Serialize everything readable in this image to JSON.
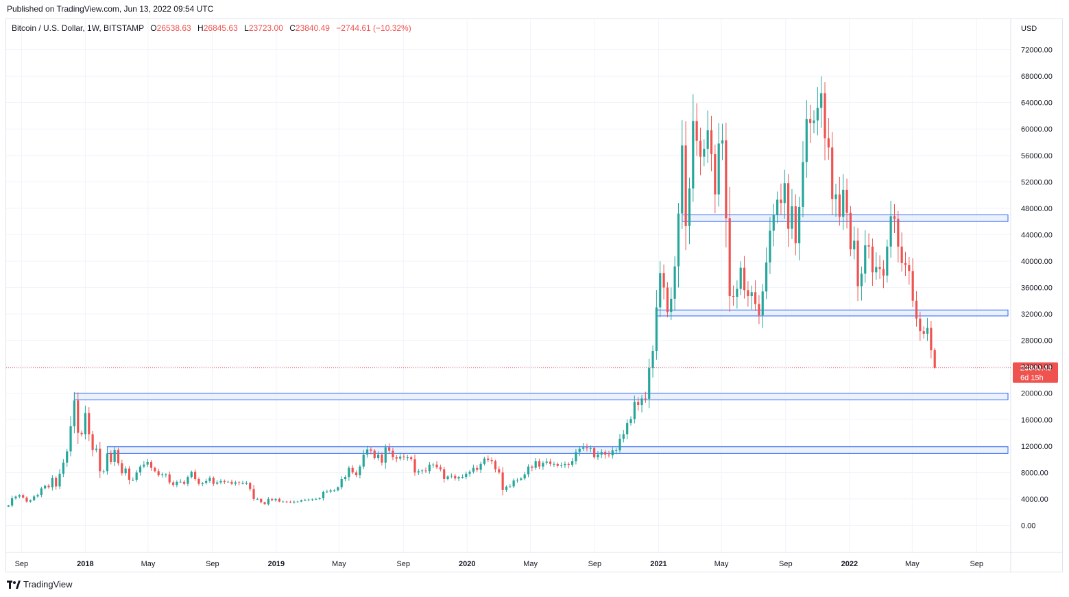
{
  "header": {
    "published": "Published on TradingView.com, Jun 13, 2022 09:54 UTC"
  },
  "legend": {
    "symbol": "Bitcoin / U.S. Dollar, 1W, BITSTAMP",
    "o_label": "O",
    "o_value": "26538.63",
    "h_label": "H",
    "h_value": "26845.63",
    "l_label": "L",
    "l_value": "23723.00",
    "c_label": "C",
    "c_value": "23840.49",
    "change": "−2744.61 (−10.32%)"
  },
  "brand": {
    "name": "TradingView",
    "icon": "tradingview-logo-icon"
  },
  "colors": {
    "up": "#26a69a",
    "down": "#ef5350",
    "zone_fill": "#e3ecfb",
    "zone_stroke": "#2962ff",
    "grid": "#f0f3fa"
  },
  "chart_data": {
    "type": "candlestick",
    "title": "Bitcoin / U.S. Dollar, 1W, BITSTAMP",
    "currency": "USD",
    "ylim": [
      -4000,
      76000
    ],
    "y_ticks": [
      "72000.00",
      "68000.00",
      "64000.00",
      "60000.00",
      "56000.00",
      "52000.00",
      "48000.00",
      "44000.00",
      "40000.00",
      "36000.00",
      "32000.00",
      "28000.00",
      "24000.00",
      "20000.00",
      "16000.00",
      "12000.00",
      "8000.00",
      "4000.00",
      "0.00"
    ],
    "y_tick_values": [
      72000,
      68000,
      64000,
      60000,
      56000,
      52000,
      48000,
      44000,
      40000,
      36000,
      32000,
      28000,
      24000,
      20000,
      16000,
      12000,
      8000,
      4000,
      0
    ],
    "x_ticks": [
      {
        "label": "Sep",
        "date": "2017-09-01",
        "bold": false
      },
      {
        "label": "2018",
        "date": "2018-01-01",
        "bold": true
      },
      {
        "label": "May",
        "date": "2018-05-01",
        "bold": false
      },
      {
        "label": "Sep",
        "date": "2018-09-01",
        "bold": false
      },
      {
        "label": "2019",
        "date": "2019-01-01",
        "bold": true
      },
      {
        "label": "May",
        "date": "2019-05-01",
        "bold": false
      },
      {
        "label": "Sep",
        "date": "2019-09-01",
        "bold": false
      },
      {
        "label": "2020",
        "date": "2020-01-01",
        "bold": true
      },
      {
        "label": "May",
        "date": "2020-05-01",
        "bold": false
      },
      {
        "label": "Sep",
        "date": "2020-09-01",
        "bold": false
      },
      {
        "label": "2021",
        "date": "2021-01-01",
        "bold": true
      },
      {
        "label": "May",
        "date": "2021-05-01",
        "bold": false
      },
      {
        "label": "Sep",
        "date": "2021-09-01",
        "bold": false
      },
      {
        "label": "2022",
        "date": "2022-01-01",
        "bold": true
      },
      {
        "label": "May",
        "date": "2022-05-01",
        "bold": false
      },
      {
        "label": "Sep",
        "date": "2022-09-01",
        "bold": false
      }
    ],
    "last_price": {
      "value": 23840.49,
      "label": "23840.49",
      "countdown": "6d 15h"
    },
    "zones": [
      {
        "start": "2021-02-15",
        "end": "2022-10-31",
        "low": 46000,
        "high": 47000
      },
      {
        "start": "2020-12-28",
        "end": "2022-10-31",
        "low": 31700,
        "high": 32600
      },
      {
        "start": "2017-12-11",
        "end": "2022-10-31",
        "low": 19000,
        "high": 20000
      },
      {
        "start": "2018-02-12",
        "end": "2022-10-31",
        "low": 10900,
        "high": 11900
      }
    ],
    "closes": [
      [
        "2017-08-07",
        3000
      ],
      [
        "2017-08-14",
        4100
      ],
      [
        "2017-08-21",
        4350
      ],
      [
        "2017-08-28",
        4580
      ],
      [
        "2017-09-04",
        4200
      ],
      [
        "2017-09-11",
        3600
      ],
      [
        "2017-09-18",
        3800
      ],
      [
        "2017-09-25",
        4370
      ],
      [
        "2017-10-02",
        4600
      ],
      [
        "2017-10-09",
        5600
      ],
      [
        "2017-10-16",
        6000
      ],
      [
        "2017-10-23",
        5750
      ],
      [
        "2017-10-30",
        7200
      ],
      [
        "2017-11-06",
        5900
      ],
      [
        "2017-11-13",
        7800
      ],
      [
        "2017-11-20",
        9500
      ],
      [
        "2017-11-27",
        11200
      ],
      [
        "2017-12-04",
        15000
      ],
      [
        "2017-12-11",
        18900
      ],
      [
        "2017-12-18",
        14000
      ],
      [
        "2017-12-25",
        13800
      ],
      [
        "2018-01-01",
        17000
      ],
      [
        "2018-01-08",
        13800
      ],
      [
        "2018-01-15",
        11400
      ],
      [
        "2018-01-22",
        11600
      ],
      [
        "2018-01-29",
        8200
      ],
      [
        "2018-02-05",
        8200
      ],
      [
        "2018-02-12",
        10900
      ],
      [
        "2018-02-19",
        9600
      ],
      [
        "2018-02-26",
        11400
      ],
      [
        "2018-03-05",
        9400
      ],
      [
        "2018-03-12",
        7900
      ],
      [
        "2018-03-19",
        8600
      ],
      [
        "2018-03-26",
        6900
      ],
      [
        "2018-04-02",
        6900
      ],
      [
        "2018-04-09",
        8000
      ],
      [
        "2018-04-16",
        8900
      ],
      [
        "2018-04-23",
        9200
      ],
      [
        "2018-04-30",
        9600
      ],
      [
        "2018-05-07",
        8700
      ],
      [
        "2018-05-14",
        8200
      ],
      [
        "2018-05-21",
        7600
      ],
      [
        "2018-05-28",
        7700
      ],
      [
        "2018-06-04",
        7700
      ],
      [
        "2018-06-11",
        6500
      ],
      [
        "2018-06-18",
        6100
      ],
      [
        "2018-06-25",
        6600
      ],
      [
        "2018-07-02",
        6600
      ],
      [
        "2018-07-09",
        6300
      ],
      [
        "2018-07-16",
        7300
      ],
      [
        "2018-07-23",
        8100
      ],
      [
        "2018-07-30",
        7000
      ],
      [
        "2018-08-06",
        6300
      ],
      [
        "2018-08-13",
        6400
      ],
      [
        "2018-08-20",
        6700
      ],
      [
        "2018-08-27",
        7200
      ],
      [
        "2018-09-03",
        6300
      ],
      [
        "2018-09-10",
        6500
      ],
      [
        "2018-09-17",
        6700
      ],
      [
        "2018-09-24",
        6600
      ],
      [
        "2018-10-01",
        6600
      ],
      [
        "2018-10-08",
        6300
      ],
      [
        "2018-10-15",
        6500
      ],
      [
        "2018-10-22",
        6400
      ],
      [
        "2018-10-29",
        6400
      ],
      [
        "2018-11-05",
        6400
      ],
      [
        "2018-11-12",
        5500
      ],
      [
        "2018-11-19",
        4000
      ],
      [
        "2018-11-26",
        4000
      ],
      [
        "2018-12-03",
        3500
      ],
      [
        "2018-12-10",
        3200
      ],
      [
        "2018-12-17",
        4000
      ],
      [
        "2018-12-24",
        3800
      ],
      [
        "2018-12-31",
        4000
      ],
      [
        "2019-01-07",
        3600
      ],
      [
        "2019-01-14",
        3600
      ],
      [
        "2019-01-21",
        3550
      ],
      [
        "2019-01-28",
        3450
      ],
      [
        "2019-02-04",
        3600
      ],
      [
        "2019-02-11",
        3600
      ],
      [
        "2019-02-18",
        3800
      ],
      [
        "2019-02-25",
        3830
      ],
      [
        "2019-03-04",
        3900
      ],
      [
        "2019-03-11",
        3950
      ],
      [
        "2019-03-18",
        3990
      ],
      [
        "2019-03-25",
        4100
      ],
      [
        "2019-04-01",
        5050
      ],
      [
        "2019-04-08",
        5100
      ],
      [
        "2019-04-15",
        5300
      ],
      [
        "2019-04-22",
        5300
      ],
      [
        "2019-04-29",
        5750
      ],
      [
        "2019-05-06",
        7000
      ],
      [
        "2019-05-13",
        7300
      ],
      [
        "2019-05-20",
        8700
      ],
      [
        "2019-05-27",
        8000
      ],
      [
        "2019-06-03",
        7600
      ],
      [
        "2019-06-10",
        8900
      ],
      [
        "2019-06-17",
        10700
      ],
      [
        "2019-06-24",
        11500
      ],
      [
        "2019-07-01",
        11300
      ],
      [
        "2019-07-08",
        10200
      ],
      [
        "2019-07-15",
        10700
      ],
      [
        "2019-07-22",
        9500
      ],
      [
        "2019-07-29",
        11800
      ],
      [
        "2019-08-05",
        11300
      ],
      [
        "2019-08-12",
        10300
      ],
      [
        "2019-08-19",
        10100
      ],
      [
        "2019-08-26",
        10400
      ],
      [
        "2019-09-02",
        10300
      ],
      [
        "2019-09-09",
        10300
      ],
      [
        "2019-09-16",
        10000
      ],
      [
        "2019-09-23",
        8000
      ],
      [
        "2019-09-30",
        8200
      ],
      [
        "2019-10-07",
        8300
      ],
      [
        "2019-10-14",
        8200
      ],
      [
        "2019-10-21",
        9200
      ],
      [
        "2019-10-28",
        9200
      ],
      [
        "2019-11-04",
        8800
      ],
      [
        "2019-11-11",
        8500
      ],
      [
        "2019-11-18",
        7000
      ],
      [
        "2019-11-25",
        7400
      ],
      [
        "2019-12-02",
        7500
      ],
      [
        "2019-12-09",
        7100
      ],
      [
        "2019-12-16",
        7300
      ],
      [
        "2019-12-23",
        7300
      ],
      [
        "2019-12-30",
        7800
      ],
      [
        "2020-01-06",
        8100
      ],
      [
        "2020-01-13",
        8700
      ],
      [
        "2020-01-20",
        8400
      ],
      [
        "2020-01-27",
        9300
      ],
      [
        "2020-02-03",
        10100
      ],
      [
        "2020-02-10",
        9900
      ],
      [
        "2020-02-17",
        9700
      ],
      [
        "2020-02-24",
        8500
      ],
      [
        "2020-03-02",
        8000
      ],
      [
        "2020-03-09",
        5350
      ],
      [
        "2020-03-16",
        5850
      ],
      [
        "2020-03-23",
        5900
      ],
      [
        "2020-03-30",
        6800
      ],
      [
        "2020-04-06",
        6900
      ],
      [
        "2020-04-13",
        7100
      ],
      [
        "2020-04-20",
        7700
      ],
      [
        "2020-04-27",
        8900
      ],
      [
        "2020-05-04",
        8700
      ],
      [
        "2020-05-11",
        9700
      ],
      [
        "2020-05-18",
        8900
      ],
      [
        "2020-05-25",
        9450
      ],
      [
        "2020-06-01",
        9650
      ],
      [
        "2020-06-08",
        9300
      ],
      [
        "2020-06-15",
        9300
      ],
      [
        "2020-06-22",
        9000
      ],
      [
        "2020-06-29",
        9100
      ],
      [
        "2020-07-06",
        9300
      ],
      [
        "2020-07-13",
        9150
      ],
      [
        "2020-07-20",
        9700
      ],
      [
        "2020-07-27",
        11100
      ],
      [
        "2020-08-03",
        11600
      ],
      [
        "2020-08-10",
        11800
      ],
      [
        "2020-08-17",
        11650
      ],
      [
        "2020-08-24",
        11700
      ],
      [
        "2020-08-31",
        10300
      ],
      [
        "2020-09-07",
        10700
      ],
      [
        "2020-09-14",
        11100
      ],
      [
        "2020-09-21",
        10700
      ],
      [
        "2020-09-28",
        10600
      ],
      [
        "2020-10-05",
        11350
      ],
      [
        "2020-10-12",
        11350
      ],
      [
        "2020-10-19",
        13100
      ],
      [
        "2020-10-26",
        13800
      ],
      [
        "2020-11-02",
        15500
      ],
      [
        "2020-11-09",
        16100
      ],
      [
        "2020-11-16",
        18700
      ],
      [
        "2020-11-23",
        18200
      ],
      [
        "2020-11-30",
        19200
      ],
      [
        "2020-12-07",
        19150
      ],
      [
        "2020-12-14",
        23800
      ],
      [
        "2020-12-21",
        26400
      ],
      [
        "2020-12-28",
        33000
      ],
      [
        "2021-01-04",
        38200
      ],
      [
        "2021-01-11",
        36000
      ],
      [
        "2021-01-18",
        32300
      ],
      [
        "2021-01-25",
        34300
      ],
      [
        "2021-02-01",
        39200
      ],
      [
        "2021-02-08",
        47200
      ],
      [
        "2021-02-15",
        57500
      ],
      [
        "2021-02-22",
        45300
      ],
      [
        "2021-03-01",
        51000
      ],
      [
        "2021-03-08",
        61200
      ],
      [
        "2021-03-15",
        58200
      ],
      [
        "2021-03-22",
        55800
      ],
      [
        "2021-03-29",
        57000
      ],
      [
        "2021-04-05",
        59800
      ],
      [
        "2021-04-12",
        56200
      ],
      [
        "2021-04-19",
        50100
      ],
      [
        "2021-04-26",
        57800
      ],
      [
        "2021-05-03",
        58300
      ],
      [
        "2021-05-10",
        46500
      ],
      [
        "2021-05-17",
        34700
      ],
      [
        "2021-05-24",
        34600
      ],
      [
        "2021-05-31",
        35800
      ],
      [
        "2021-06-07",
        39000
      ],
      [
        "2021-06-14",
        35600
      ],
      [
        "2021-06-21",
        34700
      ],
      [
        "2021-06-28",
        35300
      ],
      [
        "2021-07-05",
        33500
      ],
      [
        "2021-07-12",
        31800
      ],
      [
        "2021-07-19",
        35400
      ],
      [
        "2021-07-26",
        39800
      ],
      [
        "2021-08-02",
        44600
      ],
      [
        "2021-08-09",
        47000
      ],
      [
        "2021-08-16",
        49300
      ],
      [
        "2021-08-23",
        48800
      ],
      [
        "2021-08-30",
        51800
      ],
      [
        "2021-09-06",
        44900
      ],
      [
        "2021-09-13",
        48300
      ],
      [
        "2021-09-20",
        42700
      ],
      [
        "2021-09-27",
        48200
      ],
      [
        "2021-10-04",
        55000
      ],
      [
        "2021-10-11",
        61500
      ],
      [
        "2021-10-18",
        60900
      ],
      [
        "2021-10-25",
        61300
      ],
      [
        "2021-11-01",
        63200
      ],
      [
        "2021-11-08",
        65400
      ],
      [
        "2021-11-15",
        58600
      ],
      [
        "2021-11-22",
        57200
      ],
      [
        "2021-11-29",
        49400
      ],
      [
        "2021-12-06",
        50100
      ],
      [
        "2021-12-13",
        46700
      ],
      [
        "2021-12-20",
        50800
      ],
      [
        "2021-12-27",
        47300
      ],
      [
        "2022-01-03",
        41800
      ],
      [
        "2022-01-10",
        43100
      ],
      [
        "2022-01-17",
        36200
      ],
      [
        "2022-01-24",
        38100
      ],
      [
        "2022-01-31",
        42400
      ],
      [
        "2022-02-07",
        42200
      ],
      [
        "2022-02-14",
        38300
      ],
      [
        "2022-02-21",
        39100
      ],
      [
        "2022-02-28",
        38800
      ],
      [
        "2022-03-07",
        37800
      ],
      [
        "2022-03-14",
        42200
      ],
      [
        "2022-03-21",
        46800
      ],
      [
        "2022-03-28",
        46400
      ],
      [
        "2022-04-04",
        42200
      ],
      [
        "2022-04-11",
        39700
      ],
      [
        "2022-04-18",
        39400
      ],
      [
        "2022-04-25",
        38500
      ],
      [
        "2022-05-02",
        34000
      ],
      [
        "2022-05-09",
        31300
      ],
      [
        "2022-05-16",
        29400
      ],
      [
        "2022-05-23",
        29000
      ],
      [
        "2022-05-30",
        29900
      ],
      [
        "2022-06-06",
        26500
      ],
      [
        "2022-06-13",
        23840.49
      ]
    ],
    "last_ohlc": {
      "open": 26538.63,
      "high": 26845.63,
      "low": 23723.0,
      "close": 23840.49
    }
  }
}
